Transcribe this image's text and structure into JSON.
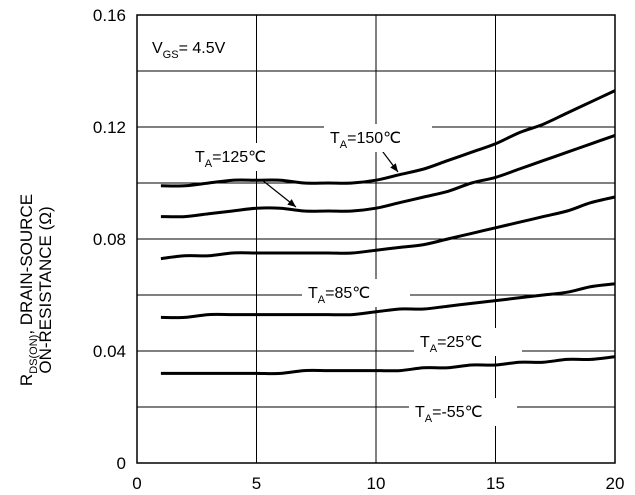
{
  "chart_data": {
    "type": "line",
    "title": "",
    "xlabel": "",
    "ylabel": {
      "line1": {
        "main": "R",
        "sub": "DS(ON)",
        "rest": ", DRAIN-SOURCE"
      },
      "line2": "ON-RESISTANCE (Ω)"
    },
    "xlim": [
      0,
      20
    ],
    "ylim": [
      0,
      0.16
    ],
    "x_ticks": [
      "0",
      "5",
      "10",
      "15",
      "20"
    ],
    "y_ticks": [
      "0",
      "0.04",
      "0.08",
      "0.12",
      "0.16"
    ],
    "grid": true,
    "legend": "none",
    "condition": {
      "main": "V",
      "sub": "GS",
      "rest": "= 4.5V"
    },
    "series": [
      {
        "label": {
          "main": "T",
          "sub": "A",
          "rest": "=150℃"
        },
        "x": [
          1,
          2,
          3,
          4,
          5,
          6,
          7,
          8,
          9,
          10,
          11,
          12,
          13,
          14,
          15,
          16,
          17,
          18,
          19,
          20
        ],
        "y": [
          0.099,
          0.099,
          0.1,
          0.101,
          0.101,
          0.101,
          0.1,
          0.1,
          0.1,
          0.101,
          0.103,
          0.105,
          0.108,
          0.111,
          0.114,
          0.118,
          0.121,
          0.125,
          0.129,
          0.133
        ]
      },
      {
        "label": {
          "main": "T",
          "sub": "A",
          "rest": "=125℃"
        },
        "x": [
          1,
          2,
          3,
          4,
          5,
          6,
          7,
          8,
          9,
          10,
          11,
          12,
          13,
          14,
          15,
          16,
          17,
          18,
          19,
          20
        ],
        "y": [
          0.088,
          0.088,
          0.089,
          0.09,
          0.091,
          0.091,
          0.09,
          0.09,
          0.09,
          0.091,
          0.093,
          0.095,
          0.097,
          0.1,
          0.102,
          0.105,
          0.108,
          0.111,
          0.114,
          0.117
        ]
      },
      {
        "label": null,
        "x": [
          1,
          2,
          3,
          4,
          5,
          6,
          7,
          8,
          9,
          10,
          11,
          12,
          13,
          14,
          15,
          16,
          17,
          18,
          19,
          20
        ],
        "y": [
          0.073,
          0.074,
          0.074,
          0.075,
          0.075,
          0.075,
          0.075,
          0.075,
          0.075,
          0.076,
          0.077,
          0.078,
          0.08,
          0.082,
          0.084,
          0.086,
          0.088,
          0.09,
          0.093,
          0.095
        ]
      },
      {
        "label": {
          "main": "T",
          "sub": "A",
          "rest": "=85℃"
        },
        "x": [
          1,
          2,
          3,
          4,
          5,
          6,
          7,
          8,
          9,
          10,
          11,
          12,
          13,
          14,
          15,
          16,
          17,
          18,
          19,
          20
        ],
        "y": [
          0.052,
          0.052,
          0.053,
          0.053,
          0.053,
          0.053,
          0.053,
          0.053,
          0.053,
          0.054,
          0.055,
          0.055,
          0.056,
          0.057,
          0.058,
          0.059,
          0.06,
          0.061,
          0.063,
          0.064
        ]
      },
      {
        "label": {
          "main": "T",
          "sub": "A",
          "rest": "=25℃"
        },
        "x": [
          1,
          2,
          3,
          4,
          5,
          6,
          7,
          8,
          9,
          10,
          11,
          12,
          13,
          14,
          15,
          16,
          17,
          18,
          19,
          20
        ],
        "y": [
          0.032,
          0.032,
          0.032,
          0.032,
          0.032,
          0.032,
          0.033,
          0.033,
          0.033,
          0.033,
          0.033,
          0.034,
          0.034,
          0.035,
          0.035,
          0.036,
          0.036,
          0.037,
          0.037,
          0.038
        ]
      },
      {
        "label": {
          "main": "T",
          "sub": "A",
          "rest": "=-55℃"
        },
        "x": [],
        "y": []
      }
    ]
  }
}
